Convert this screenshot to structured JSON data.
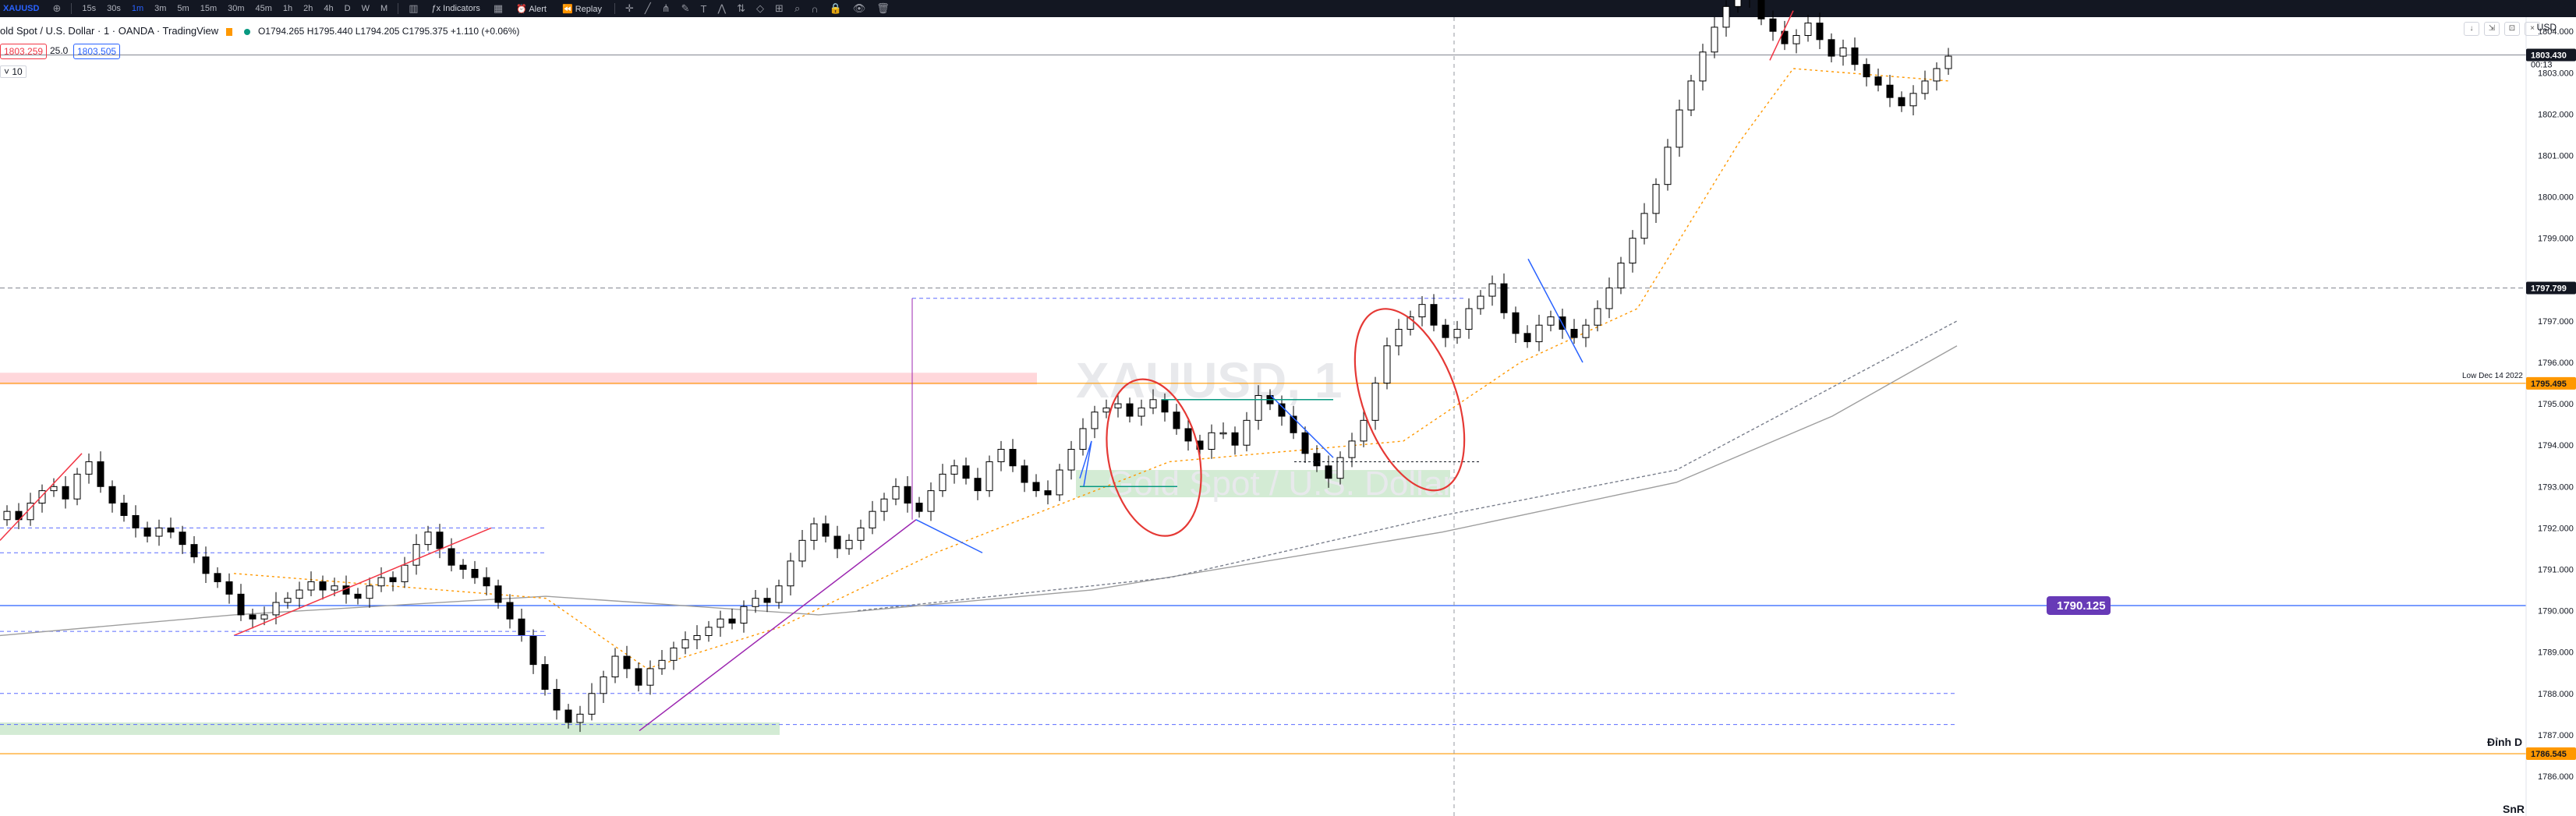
{
  "toolbar": {
    "symbol": "XAUUSD",
    "timeframes": [
      "15s",
      "30s",
      "1m",
      "3m",
      "5m",
      "15m",
      "30m",
      "45m",
      "1h",
      "2h",
      "4h",
      "D",
      "W",
      "M"
    ],
    "active_timeframe": "1m",
    "indicators_label": "Indicators",
    "alert_label": "Alert",
    "replay_label": "Replay"
  },
  "header": {
    "title": "old Spot / U.S. Dollar · 1 · OANDA · TradingView",
    "ohlc": "O1794.265 H1795.440 L1794.205 C1795.375 +1.110 (+0.06%)",
    "bid": "1803.259",
    "spread": "25.0",
    "ask": "1803.505",
    "indicator_value": "10",
    "currency": "USD"
  },
  "watermark": {
    "symbol": "XAUUSD, 1",
    "subtitle": "Gold Spot / U.S. Dollar"
  },
  "colors": {
    "up": "#ffffff",
    "down": "#000000",
    "bearline": "#2962ff",
    "trend": "#f23645",
    "purple": "#9c27b0",
    "orange": "#ff9800",
    "hline": "#2962ff",
    "green_zone": "#c8e6c9",
    "red_zone": "#ffcdd2",
    "badge": "#673ab7"
  },
  "price_axis": {
    "ticks": [
      "1804.000",
      "1803.000",
      "1802.000",
      "1801.000",
      "1800.000",
      "1799.000",
      "1797.000",
      "1796.000",
      "1795.000",
      "1794.000",
      "1793.000",
      "1792.000",
      "1791.000",
      "1790.000",
      "1789.000",
      "1788.000",
      "1787.000",
      "1786.000"
    ],
    "last_price": "1803.430",
    "countdown": "00:13",
    "dotted_line_label": "1797.799",
    "low_label": "Low Dec 14 2022",
    "low_value": "1795.495",
    "dinh_label": "Đỉnh D",
    "dinh_value": "1786.545",
    "hline_badge": "1790.125"
  },
  "footer": {
    "snr_label": "SnR"
  },
  "chart_data": {
    "type": "candlestick",
    "instrument": "XAUUSD",
    "timeframe": "1m",
    "ylim": [
      1785.6,
      1804.5
    ],
    "horizontal_levels": [
      {
        "price": 1790.125,
        "style": "solid",
        "color": "#2962ff"
      },
      {
        "price": 1795.495,
        "style": "solid",
        "color": "#ff9800"
      },
      {
        "price": 1786.545,
        "style": "solid",
        "color": "#ff9800"
      },
      {
        "price": 1797.799,
        "style": "dashed",
        "color": "#9598a1"
      },
      {
        "price": 1803.43,
        "style": "solid",
        "color": "#9598a1"
      }
    ],
    "closes": [
      1792.4,
      1792.2,
      1792.6,
      1792.9,
      1793.0,
      1792.7,
      1793.3,
      1793.6,
      1793.0,
      1792.6,
      1792.3,
      1792.0,
      1791.8,
      1792.0,
      1791.9,
      1791.6,
      1791.3,
      1790.9,
      1790.7,
      1790.4,
      1789.9,
      1789.8,
      1789.9,
      1790.2,
      1790.3,
      1790.5,
      1790.7,
      1790.5,
      1790.6,
      1790.4,
      1790.3,
      1790.6,
      1790.8,
      1790.7,
      1791.1,
      1791.6,
      1791.9,
      1791.5,
      1791.1,
      1791.0,
      1790.8,
      1790.6,
      1790.2,
      1789.8,
      1789.4,
      1788.7,
      1788.1,
      1787.6,
      1787.3,
      1787.5,
      1788.0,
      1788.4,
      1788.9,
      1788.6,
      1788.2,
      1788.6,
      1788.8,
      1789.1,
      1789.3,
      1789.4,
      1789.6,
      1789.8,
      1789.7,
      1790.1,
      1790.3,
      1790.2,
      1790.6,
      1791.2,
      1791.7,
      1792.1,
      1791.8,
      1791.5,
      1791.7,
      1792.0,
      1792.4,
      1792.7,
      1793.0,
      1792.6,
      1792.4,
      1792.9,
      1793.3,
      1793.5,
      1793.2,
      1792.9,
      1793.6,
      1793.9,
      1793.5,
      1793.1,
      1792.9,
      1792.8,
      1793.4,
      1793.9,
      1794.4,
      1794.8,
      1794.9,
      1795.0,
      1794.7,
      1794.9,
      1795.1,
      1794.8,
      1794.4,
      1794.1,
      1793.9,
      1794.3,
      1794.3,
      1794.0,
      1794.6,
      1795.2,
      1795.0,
      1794.7,
      1794.3,
      1793.8,
      1793.5,
      1793.2,
      1793.7,
      1794.1,
      1794.6,
      1795.5,
      1796.4,
      1796.8,
      1797.1,
      1797.4,
      1796.9,
      1796.6,
      1796.8,
      1797.3,
      1797.6,
      1797.9,
      1797.2,
      1796.7,
      1796.5,
      1796.9,
      1797.1,
      1796.8,
      1796.6,
      1796.9,
      1797.3,
      1797.8,
      1798.4,
      1799.0,
      1799.6,
      1800.3,
      1801.2,
      1802.1,
      1802.8,
      1803.5,
      1804.1,
      1804.6,
      1805.0,
      1804.8,
      1804.3,
      1804.0,
      1803.7,
      1803.9,
      1804.2,
      1803.8,
      1803.4,
      1803.6,
      1803.2,
      1802.9,
      1802.7,
      1802.4,
      1802.2,
      1802.5,
      1802.8,
      1803.1,
      1803.4
    ]
  }
}
